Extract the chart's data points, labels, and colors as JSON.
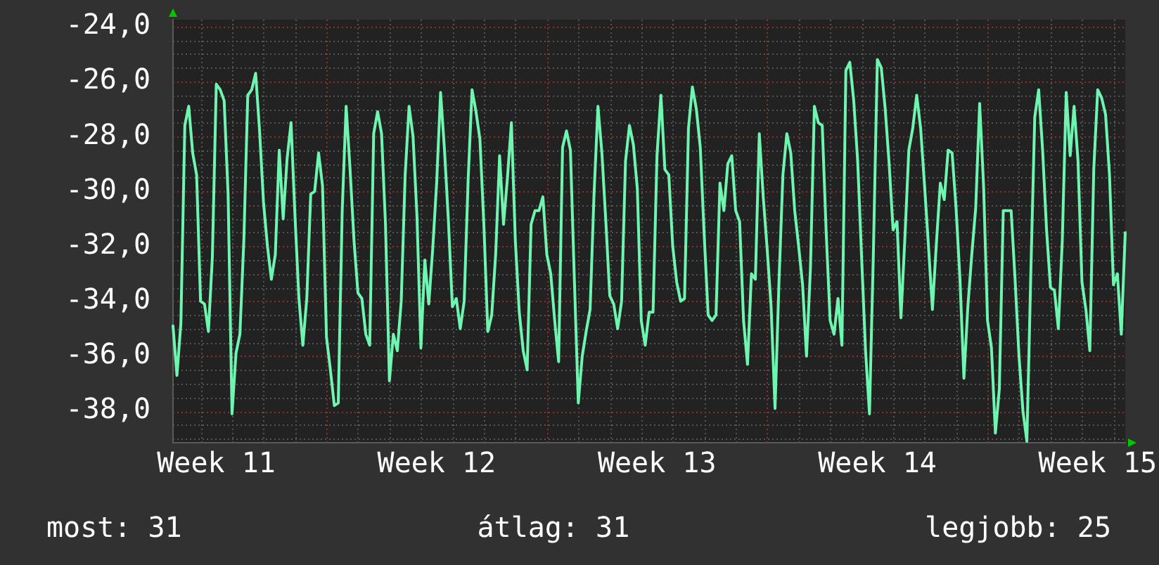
{
  "chart_data": {
    "type": "line",
    "categories": [
      null,
      null,
      null,
      null,
      null,
      null,
      null,
      null,
      null,
      null,
      null,
      "Week 11",
      null,
      null,
      null,
      null,
      null,
      null,
      null,
      null,
      null,
      null,
      null,
      null,
      null,
      null,
      null,
      null,
      null,
      null,
      null,
      null,
      null,
      null,
      null,
      null,
      null,
      null,
      null,
      null,
      null,
      null,
      null,
      null,
      null,
      null,
      null,
      null,
      null,
      null,
      null,
      null,
      null,
      null,
      null,
      null,
      null,
      null,
      null,
      null,
      null,
      null,
      null,
      null,
      null,
      null,
      null,
      "Week 12",
      null,
      null,
      null,
      null,
      null,
      null,
      null,
      null,
      null,
      null,
      null,
      null,
      null,
      null,
      null,
      null,
      null,
      null,
      null,
      null,
      null,
      null,
      null,
      null,
      null,
      null,
      null,
      null,
      null,
      null,
      null,
      null,
      null,
      null,
      null,
      null,
      null,
      null,
      null,
      null,
      null,
      null,
      null,
      null,
      null,
      null,
      null,
      null,
      null,
      null,
      null,
      null,
      null,
      null,
      null,
      "Week 13",
      null,
      null,
      null,
      null,
      null,
      null,
      null,
      null,
      null,
      null,
      null,
      null,
      null,
      null,
      null,
      null,
      null,
      null,
      null,
      null,
      null,
      null,
      null,
      null,
      null,
      null,
      null,
      null,
      null,
      null,
      null,
      null,
      null,
      null,
      null,
      null,
      null,
      null,
      null,
      null,
      null,
      null,
      null,
      null,
      null,
      null,
      null,
      null,
      null,
      null,
      null,
      null,
      null,
      null,
      null,
      "Week 14",
      null,
      null,
      null,
      null,
      null,
      null,
      null,
      null,
      null,
      null,
      null,
      null,
      null,
      null,
      null,
      null,
      null,
      null,
      null,
      null,
      null,
      null,
      null,
      null,
      null,
      null,
      null,
      null,
      null,
      null,
      null,
      null,
      null,
      null,
      null,
      null,
      null,
      null,
      null,
      null,
      null,
      null,
      null,
      null,
      null,
      null,
      null,
      null,
      null,
      null,
      null,
      null,
      null,
      null,
      null,
      "Week 15",
      null,
      null,
      null,
      null,
      null,
      null,
      null
    ],
    "values": [
      -34.9,
      -36.7,
      -34.8,
      -27.6,
      -26.9,
      -28.6,
      -29.4,
      -34.0,
      -34.1,
      -35.1,
      -32.4,
      -26.1,
      -26.3,
      -26.7,
      -30.1,
      -38.1,
      -35.9,
      -35.2,
      -31.8,
      -26.5,
      -26.3,
      -25.7,
      -27.8,
      -30.4,
      -32.0,
      -33.2,
      -32.3,
      -28.5,
      -31.0,
      -28.8,
      -27.5,
      -30.9,
      -33.9,
      -35.6,
      -33.9,
      -30.1,
      -30.0,
      -28.6,
      -29.8,
      -35.3,
      -36.5,
      -37.8,
      -37.7,
      -30.7,
      -26.9,
      -29.2,
      -31.8,
      -33.7,
      -33.9,
      -35.2,
      -35.6,
      -27.9,
      -27.1,
      -27.9,
      -31.2,
      -36.9,
      -35.2,
      -35.8,
      -34.0,
      -29.4,
      -26.9,
      -28.0,
      -30.9,
      -35.7,
      -32.5,
      -34.1,
      -32.1,
      -29.7,
      -26.4,
      -28.5,
      -31.1,
      -34.2,
      -33.9,
      -35.0,
      -34.0,
      -29.6,
      -26.3,
      -27.1,
      -28.1,
      -31.2,
      -35.1,
      -34.5,
      -32.3,
      -28.7,
      -31.2,
      -29.5,
      -27.5,
      -31.8,
      -34.4,
      -35.8,
      -36.5,
      -31.2,
      -30.7,
      -30.7,
      -30.2,
      -32.3,
      -33.0,
      -34.7,
      -36.2,
      -28.4,
      -27.8,
      -28.5,
      -33.2,
      -37.7,
      -36.0,
      -35.1,
      -34.3,
      -30.1,
      -26.9,
      -28.6,
      -31.1,
      -33.8,
      -34.1,
      -35.0,
      -34.0,
      -28.9,
      -27.6,
      -28.3,
      -29.9,
      -34.7,
      -35.6,
      -34.4,
      -34.4,
      -28.7,
      -26.5,
      -29.2,
      -29.4,
      -32.0,
      -33.3,
      -34.0,
      -33.9,
      -27.7,
      -26.2,
      -27.0,
      -28.4,
      -31.6,
      -34.5,
      -34.7,
      -34.5,
      -29.7,
      -30.7,
      -29.0,
      -28.7,
      -30.7,
      -31.1,
      -34.7,
      -36.3,
      -33.0,
      -33.2,
      -27.9,
      -30.2,
      -32.1,
      -34.2,
      -37.9,
      -33.3,
      -29.4,
      -27.9,
      -28.6,
      -30.7,
      -32.0,
      -33.4,
      -36.0,
      -32.8,
      -26.9,
      -27.5,
      -27.6,
      -31.5,
      -34.7,
      -35.2,
      -33.9,
      -35.6,
      -25.6,
      -25.3,
      -26.7,
      -28.9,
      -32.4,
      -35.8,
      -38.1,
      -32.2,
      -25.2,
      -25.5,
      -27.0,
      -29.0,
      -31.4,
      -31.1,
      -34.6,
      -31.7,
      -28.5,
      -27.7,
      -26.5,
      -27.7,
      -29.8,
      -32.0,
      -34.3,
      -31.9,
      -29.7,
      -30.3,
      -28.5,
      -28.6,
      -30.6,
      -33.2,
      -36.8,
      -34.2,
      -32.3,
      -30.6,
      -26.8,
      -29.8,
      -34.7,
      -35.7,
      -38.8,
      -37.2,
      -30.7,
      -30.7,
      -30.7,
      -33.2,
      -36.0,
      -38.0,
      -39.1,
      -33.0,
      -27.3,
      -26.3,
      -28.5,
      -31.4,
      -33.5,
      -33.6,
      -35.0,
      -31.8,
      -26.4,
      -28.7,
      -26.9,
      -28.9,
      -33.3,
      -34.3,
      -35.8,
      -29.2,
      -26.3,
      -26.6,
      -27.2,
      -29.4,
      -33.4,
      -33.0,
      -35.2,
      -31.5
    ],
    "color": "#6ef5b0",
    "ylim": [
      -39.15,
      -23.75
    ],
    "yticks": [
      {
        "value": -39,
        "label": null
      },
      {
        "value": -38.5,
        "label": null
      },
      {
        "value": -38,
        "label": "-38,0"
      },
      {
        "value": -37.5,
        "label": null
      },
      {
        "value": -37,
        "label": null
      },
      {
        "value": -36.5,
        "label": null
      },
      {
        "value": -36,
        "label": "-36,0"
      },
      {
        "value": -35.5,
        "label": null
      },
      {
        "value": -35,
        "label": null
      },
      {
        "value": -34.5,
        "label": null
      },
      {
        "value": -34,
        "label": "-34,0"
      },
      {
        "value": -33.5,
        "label": null
      },
      {
        "value": -33,
        "label": null
      },
      {
        "value": -32.5,
        "label": null
      },
      {
        "value": -32,
        "label": "-32,0"
      },
      {
        "value": -31.5,
        "label": null
      },
      {
        "value": -31,
        "label": null
      },
      {
        "value": -30.5,
        "label": null
      },
      {
        "value": -30,
        "label": "-30,0"
      },
      {
        "value": -29.5,
        "label": null
      },
      {
        "value": -29,
        "label": null
      },
      {
        "value": -28.5,
        "label": null
      },
      {
        "value": -28,
        "label": "-28,0"
      },
      {
        "value": -27.5,
        "label": null
      },
      {
        "value": -27,
        "label": null
      },
      {
        "value": -26.5,
        "label": null
      },
      {
        "value": -26,
        "label": "-26,0"
      },
      {
        "value": -25.5,
        "label": null
      },
      {
        "value": -25,
        "label": null
      },
      {
        "value": -24.5,
        "label": null
      },
      {
        "value": -24,
        "label": "-24,0"
      }
    ],
    "grid": true,
    "annotations": [
      "most: 31",
      "átlag: 31",
      "legjobb: 25"
    ]
  }
}
